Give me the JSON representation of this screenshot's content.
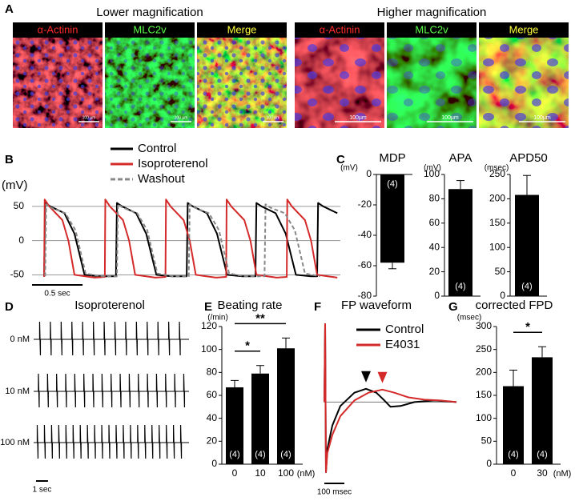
{
  "panel_labels": [
    "A",
    "B",
    "C",
    "D",
    "E",
    "F",
    "G"
  ],
  "panel_a": {
    "groups": [
      {
        "title": "Lower magnification",
        "tiles": [
          {
            "label": "α-Actinin",
            "color": "#ff2a2a",
            "scale_bar": "100 µm"
          },
          {
            "label": "MLC2v",
            "color": "#5cff4a",
            "scale_bar": "100 µm"
          },
          {
            "label": "Merge",
            "color": "#ffff3a",
            "scale_bar": "100 µm"
          }
        ]
      },
      {
        "title": "Higher magnification",
        "tiles": [
          {
            "label": "α-Actinin",
            "color": "#ff2a2a",
            "scale_bar": "100µm"
          },
          {
            "label": "MLC2v",
            "color": "#5cff4a",
            "scale_bar": "100µm"
          },
          {
            "label": "Merge",
            "color": "#ffff3a",
            "scale_bar": "100µm"
          }
        ]
      }
    ]
  },
  "chart_data": [
    {
      "type": "line",
      "ylabel": "(mV)",
      "xlim": [
        0,
        3.05
      ],
      "ylim": [
        -60,
        65
      ],
      "yticks": [
        -50,
        0,
        50
      ],
      "grid": true,
      "scale_bar": {
        "value": 0.5,
        "label": "0.5 sec"
      },
      "series": [
        {
          "name": "Control",
          "color": "#000000",
          "dashed": false,
          "x": [
            0.12,
            0.13,
            0.18,
            0.32,
            0.42,
            0.52,
            0.67,
            0.83,
            0.84,
            0.89,
            1.03,
            1.13,
            1.23,
            1.38,
            1.53,
            1.54,
            1.59,
            1.73,
            1.83,
            1.93,
            2.08,
            2.21,
            2.22,
            2.27,
            2.41,
            2.51,
            2.61,
            2.76,
            2.82,
            2.83,
            2.88,
            3.02
          ],
          "values": [
            -52,
            55,
            50,
            40,
            10,
            -50,
            -52,
            -52,
            55,
            50,
            40,
            10,
            -50,
            -52,
            -52,
            55,
            50,
            40,
            10,
            -50,
            -52,
            -52,
            55,
            50,
            40,
            10,
            -50,
            -52,
            -52,
            55,
            50,
            40
          ]
        },
        {
          "name": "Isoproterenol",
          "color": "#d42a2a",
          "dashed": false,
          "x": [
            0.12,
            0.125,
            0.17,
            0.3,
            0.36,
            0.42,
            0.62,
            0.72,
            0.725,
            0.77,
            0.9,
            0.96,
            1.02,
            1.22,
            1.32,
            1.325,
            1.37,
            1.5,
            1.56,
            1.62,
            1.82,
            1.92,
            1.925,
            1.97,
            2.1,
            2.16,
            2.22,
            2.42,
            2.52,
            2.525,
            2.57,
            2.7,
            2.76,
            2.82,
            3.02
          ],
          "values": [
            -53,
            60,
            50,
            30,
            0,
            -50,
            -54,
            -53,
            60,
            50,
            30,
            0,
            -50,
            -54,
            -53,
            60,
            50,
            30,
            0,
            -50,
            -54,
            -53,
            60,
            50,
            30,
            0,
            -50,
            -54,
            -53,
            60,
            50,
            30,
            0,
            -50,
            -54
          ]
        },
        {
          "name": "Washout",
          "color": "#888888",
          "dashed": true,
          "x": [
            0.13,
            0.14,
            0.19,
            0.33,
            0.43,
            0.53,
            0.68,
            0.84,
            0.85,
            0.9,
            1.04,
            1.14,
            1.24,
            1.39,
            1.55,
            1.56,
            1.61,
            1.75,
            1.85,
            1.95,
            2.1,
            2.3,
            2.31,
            2.36,
            2.5,
            2.6,
            2.7,
            2.85
          ],
          "values": [
            -52,
            53,
            48,
            40,
            15,
            -48,
            -52,
            -52,
            53,
            48,
            40,
            15,
            -48,
            -52,
            -52,
            53,
            48,
            40,
            15,
            -48,
            -52,
            -52,
            53,
            48,
            40,
            15,
            -48,
            -52
          ]
        }
      ]
    },
    {
      "type": "bar",
      "title": "MDP",
      "ylabel": "(mV)",
      "ylim": [
        -80,
        0
      ],
      "yticks": [
        -80,
        -60,
        -40,
        -20,
        0
      ],
      "values": [
        -58
      ],
      "errors": [
        4
      ],
      "n_labels": [
        "(4)"
      ],
      "color": "#000000"
    },
    {
      "type": "bar",
      "title": "APA",
      "ylabel": "(mV)",
      "ylim": [
        0,
        100
      ],
      "yticks": [
        0,
        20,
        40,
        60,
        80,
        100
      ],
      "values": [
        88
      ],
      "errors": [
        7
      ],
      "n_labels": [
        "(4)"
      ],
      "color": "#000000"
    },
    {
      "type": "bar",
      "title": "APD50",
      "ylabel": "(msec)",
      "ylim": [
        0,
        250
      ],
      "yticks": [
        0,
        50,
        100,
        150,
        200,
        250
      ],
      "values": [
        208
      ],
      "errors": [
        40
      ],
      "n_labels": [
        "(4)"
      ],
      "color": "#000000"
    },
    {
      "type": "spikes",
      "title": "Isoproterenol",
      "xlim": [
        0,
        13
      ],
      "scale_bar": {
        "value": 1,
        "label": "1 sec"
      },
      "series": [
        {
          "name": "0 nM",
          "x": [
            0.5,
            1.4,
            2.3,
            3.2,
            4.1,
            5,
            5.9,
            6.8,
            7.7,
            8.6,
            9.5,
            10.4,
            11.3,
            12.2
          ]
        },
        {
          "name": "10 nM",
          "x": [
            0.4,
            1.16,
            1.92,
            2.68,
            3.44,
            4.2,
            4.96,
            5.72,
            6.48,
            7.24,
            8,
            8.76,
            9.52,
            10.28,
            11.04,
            11.8,
            12.56
          ]
        },
        {
          "name": "100 nM",
          "x": [
            0.3,
            0.9,
            1.5,
            2.1,
            2.7,
            3.3,
            3.9,
            4.5,
            5.1,
            5.7,
            6.3,
            6.9,
            7.5,
            8.1,
            8.7,
            9.3,
            9.9,
            10.5,
            11.1,
            11.7,
            12.3
          ]
        }
      ]
    },
    {
      "type": "bar",
      "title": "Beating rate",
      "ylabel": "(/min)",
      "xlabel": "(nM)",
      "ylim": [
        0,
        120
      ],
      "yticks": [
        0,
        20,
        40,
        60,
        80,
        100,
        120
      ],
      "categories": [
        "0",
        "10",
        "100"
      ],
      "values": [
        67,
        79,
        101
      ],
      "errors": [
        6,
        7,
        9
      ],
      "n_labels": [
        "(4)",
        "(4)",
        "(4)"
      ],
      "color": "#000000",
      "comparisons": [
        {
          "bars": [
            0,
            1
          ],
          "label": "*"
        },
        {
          "bars": [
            0,
            2
          ],
          "label": "**"
        }
      ]
    },
    {
      "type": "line",
      "title": "FP waveform",
      "xlim": [
        0,
        660
      ],
      "ylim": [
        -0.95,
        1.05
      ],
      "baseline": 0,
      "scale_bar": {
        "value": 100,
        "label": "100 msec"
      },
      "peak_arrows": true,
      "series": [
        {
          "name": "Control",
          "color": "#000000",
          "dashed": false,
          "x": [
            0,
            4,
            8,
            15,
            40,
            80,
            150,
            208,
            260,
            300,
            330,
            380,
            450,
            550,
            660
          ],
          "values": [
            0,
            1.0,
            -0.9,
            -0.6,
            -0.3,
            -0.05,
            0.12,
            0.17,
            0.12,
            0.02,
            -0.06,
            -0.05,
            0,
            0.02,
            0
          ]
        },
        {
          "name": "E4031",
          "color": "#d42a2a",
          "dashed": false,
          "x": [
            0,
            4,
            8,
            15,
            40,
            80,
            150,
            220,
            290,
            350,
            420,
            500,
            580,
            660
          ],
          "values": [
            0,
            1.0,
            -0.9,
            -0.65,
            -0.42,
            -0.18,
            0.02,
            0.12,
            0.16,
            0.12,
            0.06,
            0.03,
            0.02,
            0
          ]
        }
      ]
    },
    {
      "type": "bar",
      "title": "corrected FPD",
      "ylabel": "(msec)",
      "xlabel": "(nM)",
      "ylim": [
        0,
        300
      ],
      "yticks": [
        0,
        50,
        100,
        150,
        200,
        250,
        300
      ],
      "categories": [
        "0",
        "30"
      ],
      "values": [
        170,
        233
      ],
      "errors": [
        35,
        23
      ],
      "n_labels": [
        "(4)",
        "(4)"
      ],
      "color": "#000000",
      "comparisons": [
        {
          "bars": [
            0,
            1
          ],
          "label": "*"
        }
      ]
    }
  ]
}
